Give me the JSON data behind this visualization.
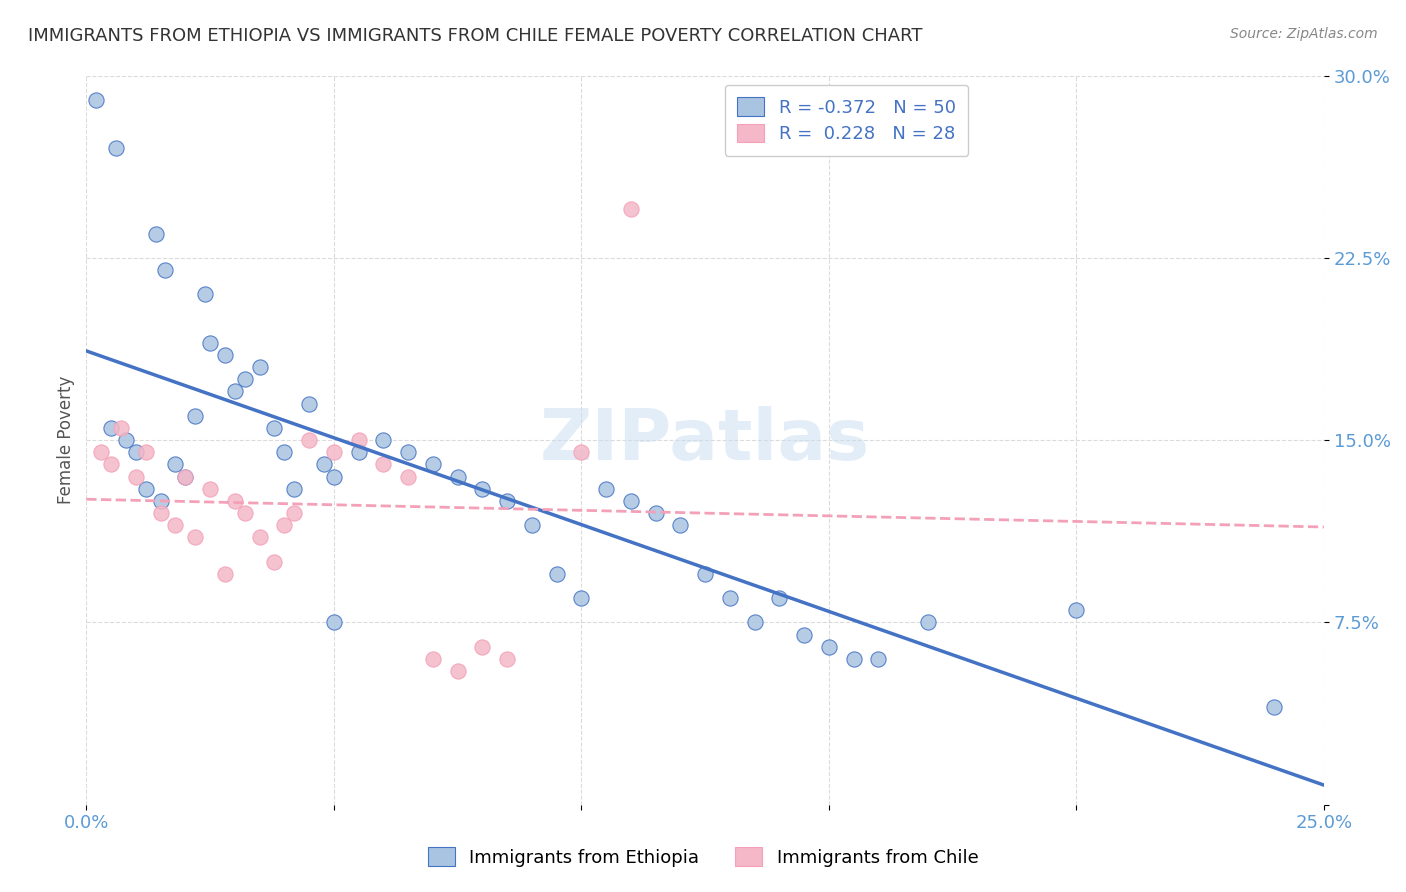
{
  "title": "IMMIGRANTS FROM ETHIOPIA VS IMMIGRANTS FROM CHILE FEMALE POVERTY CORRELATION CHART",
  "source": "Source: ZipAtlas.com",
  "xlabel_bottom": "",
  "ylabel": "Female Poverty",
  "xlim": [
    0.0,
    0.25
  ],
  "ylim": [
    0.0,
    0.3
  ],
  "xticks": [
    0.0,
    0.05,
    0.1,
    0.15,
    0.2,
    0.25
  ],
  "xticklabels": [
    "0.0%",
    "",
    "",
    "",
    "",
    "25.0%"
  ],
  "yticks": [
    0.0,
    0.075,
    0.15,
    0.225,
    0.3
  ],
  "yticklabels": [
    "",
    "7.5%",
    "15.0%",
    "22.5%",
    "30.0%"
  ],
  "legend_R1": "-0.372",
  "legend_N1": "50",
  "legend_R2": "0.228",
  "legend_N2": "28",
  "color_ethiopia": "#a8c4e0",
  "color_chile": "#f4b8c8",
  "color_line_ethiopia": "#4472c4",
  "color_line_chile": "#f4a0b8",
  "watermark": "ZIPatlas",
  "ethiopia_x": [
    0.005,
    0.008,
    0.01,
    0.012,
    0.015,
    0.018,
    0.02,
    0.022,
    0.025,
    0.028,
    0.03,
    0.032,
    0.035,
    0.038,
    0.04,
    0.042,
    0.045,
    0.048,
    0.05,
    0.055,
    0.06,
    0.065,
    0.07,
    0.075,
    0.08,
    0.085,
    0.09,
    0.095,
    0.1,
    0.105,
    0.11,
    0.115,
    0.12,
    0.125,
    0.13,
    0.135,
    0.14,
    0.145,
    0.15,
    0.155,
    0.16,
    0.17,
    0.002,
    0.006,
    0.014,
    0.016,
    0.024,
    0.05,
    0.2,
    0.24
  ],
  "ethiopia_y": [
    0.155,
    0.15,
    0.145,
    0.13,
    0.125,
    0.14,
    0.135,
    0.16,
    0.19,
    0.185,
    0.17,
    0.175,
    0.18,
    0.155,
    0.145,
    0.13,
    0.165,
    0.14,
    0.135,
    0.145,
    0.15,
    0.145,
    0.14,
    0.135,
    0.13,
    0.125,
    0.115,
    0.095,
    0.085,
    0.13,
    0.125,
    0.12,
    0.115,
    0.095,
    0.085,
    0.075,
    0.085,
    0.07,
    0.065,
    0.06,
    0.06,
    0.075,
    0.29,
    0.27,
    0.235,
    0.22,
    0.21,
    0.075,
    0.08,
    0.04
  ],
  "chile_x": [
    0.003,
    0.005,
    0.007,
    0.01,
    0.012,
    0.015,
    0.018,
    0.02,
    0.022,
    0.025,
    0.028,
    0.03,
    0.032,
    0.035,
    0.038,
    0.04,
    0.042,
    0.045,
    0.05,
    0.055,
    0.06,
    0.065,
    0.07,
    0.075,
    0.08,
    0.085,
    0.1,
    0.11
  ],
  "chile_y": [
    0.145,
    0.14,
    0.155,
    0.135,
    0.145,
    0.12,
    0.115,
    0.135,
    0.11,
    0.13,
    0.095,
    0.125,
    0.12,
    0.11,
    0.1,
    0.115,
    0.12,
    0.15,
    0.145,
    0.15,
    0.14,
    0.135,
    0.06,
    0.055,
    0.065,
    0.06,
    0.145,
    0.245
  ]
}
